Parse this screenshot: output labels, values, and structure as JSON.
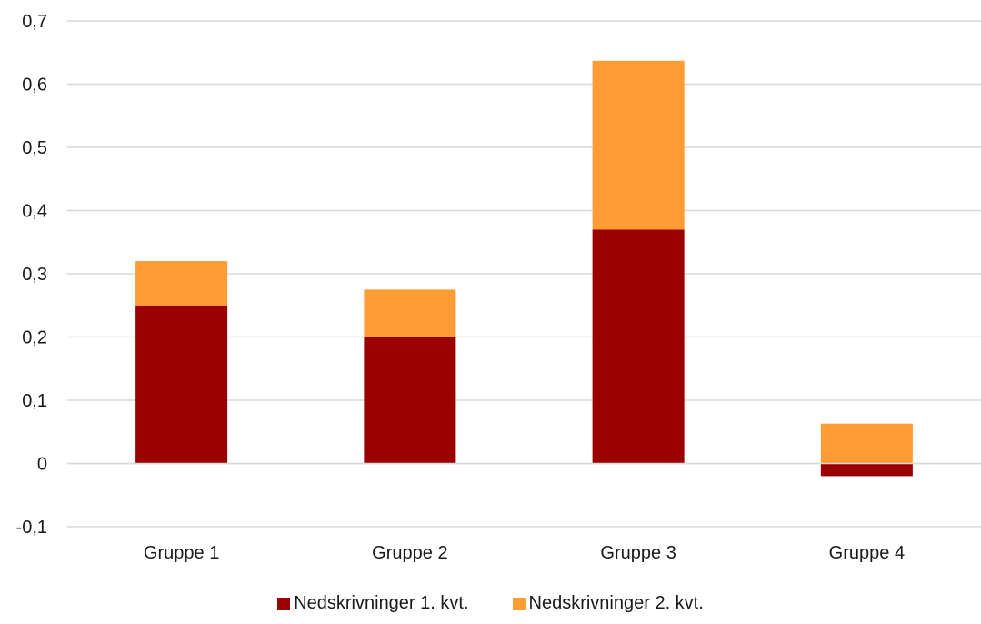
{
  "chart_data": {
    "type": "bar",
    "stacked": true,
    "categories": [
      "Gruppe 1",
      "Gruppe 2",
      "Gruppe 3",
      "Gruppe 4"
    ],
    "series": [
      {
        "name": "Nedskrivninger 1. kvt.",
        "values": [
          0.25,
          0.2,
          0.37,
          -0.02
        ],
        "color": "#9b0000"
      },
      {
        "name": "Nedskrivninger 2. kvt.",
        "values": [
          0.07,
          0.075,
          0.267,
          0.063
        ],
        "color": "#ff9c33"
      }
    ],
    "ylim": [
      -0.1,
      0.7
    ],
    "yticks": [
      "-0,1",
      "0",
      "0,1",
      "0,2",
      "0,3",
      "0,4",
      "0,5",
      "0,6",
      "0,7"
    ],
    "grid": true,
    "legend_position": "bottom"
  }
}
